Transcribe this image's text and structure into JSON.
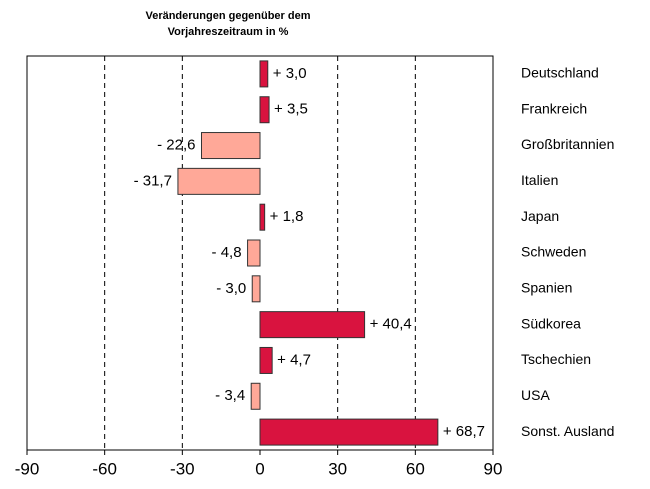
{
  "chart_data": {
    "type": "bar",
    "orientation": "horizontal",
    "title": [
      "Veränderungen gegenüber dem",
      "Vorjahreszeitraum in %"
    ],
    "categories": [
      "Deutschland",
      "Frankreich",
      "Großbritannien",
      "Italien",
      "Japan",
      "Schweden",
      "Spanien",
      "Südkorea",
      "Tschechien",
      "USA",
      "Sonst. Ausland"
    ],
    "values": [
      3.0,
      3.5,
      -22.6,
      -31.7,
      1.8,
      -4.8,
      -3.0,
      40.4,
      4.7,
      -3.4,
      68.7
    ],
    "value_labels": [
      "+ 3,0",
      "+ 3,5",
      "- 22,6",
      "- 31,7",
      "+ 1,8",
      "- 4,8",
      "- 3,0",
      "+ 40,4",
      "+ 4,7",
      "- 3,4",
      "+ 68,7"
    ],
    "positive_color": "#d9133f",
    "negative_color": "#ffa898",
    "xlim": [
      -90,
      90
    ],
    "xticks": [
      -90,
      -60,
      -30,
      0,
      30,
      60,
      90
    ],
    "grid": true
  }
}
